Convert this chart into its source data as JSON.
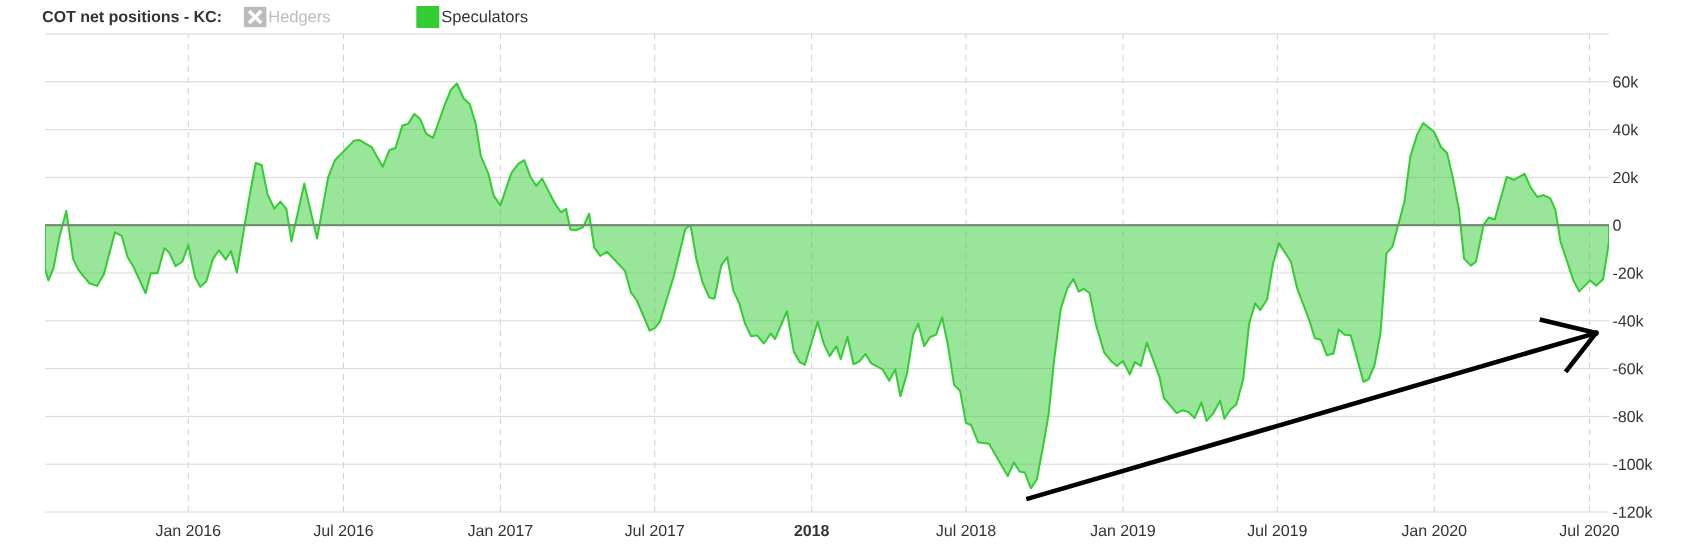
{
  "chart_data": {
    "type": "area",
    "legend_title": "COT net positions - KC:",
    "legend": "top left",
    "grid": true,
    "xlim": [
      "2015-07-17",
      "2020-07-24"
    ],
    "ylim": [
      -120000,
      80000
    ],
    "xticks": [
      {
        "value": "2016-01-01",
        "label": "Jan 2016"
      },
      {
        "value": "2016-07-01",
        "label": "Jul 2016"
      },
      {
        "value": "2017-01-01",
        "label": "Jan 2017"
      },
      {
        "value": "2017-07-01",
        "label": "Jul 2017"
      },
      {
        "value": "2018-01-01",
        "label": "**2018**"
      },
      {
        "value": "2018-07-01",
        "label": "Jul 2018"
      },
      {
        "value": "2019-01-01",
        "label": "Jan 2019"
      },
      {
        "value": "2019-07-01",
        "label": "Jul 2019"
      },
      {
        "value": "2020-01-01",
        "label": "Jan 2020"
      },
      {
        "value": "2020-07-01",
        "label": "Jul 2020"
      }
    ],
    "yticks": [
      {
        "value": -120000,
        "label": "-120k"
      },
      {
        "value": -100000,
        "label": "-100k"
      },
      {
        "value": -80000,
        "label": "-80k"
      },
      {
        "value": -60000,
        "label": "-60k"
      },
      {
        "value": -40000,
        "label": "-40k"
      },
      {
        "value": -20000,
        "label": "-20k"
      },
      0,
      {
        "value": 20000,
        "label": "20k"
      },
      {
        "value": 40000,
        "label": "40k"
      },
      {
        "value": 60000,
        "label": "60k"
      },
      {
        "value": 80000,
        "label": null
      }
    ],
    "ref_lines": [
      {
        "axis": "y",
        "value": 0,
        "color": "#808080"
      }
    ],
    "x": [
      "2015-07-17",
      "2015-07-21",
      "2015-07-27",
      "2015-08-03",
      "2015-08-11",
      "2015-08-19",
      "2015-08-25",
      "2015-09-07",
      "2015-09-16",
      "2015-09-24",
      "2015-10-07",
      "2015-10-15",
      "2015-10-22",
      "2015-10-29",
      "2015-11-12",
      "2015-11-18",
      "2015-11-26",
      "2015-12-04",
      "2015-12-10",
      "2015-12-17",
      "2015-12-25",
      "2016-01-01",
      "2016-01-09",
      "2016-01-15",
      "2016-01-22",
      "2016-01-30",
      "2016-02-06",
      "2016-02-14",
      "2016-02-20",
      "2016-02-27",
      "2016-03-05",
      "2016-03-13",
      "2016-03-20",
      "2016-03-27",
      "2016-04-03",
      "2016-04-11",
      "2016-04-18",
      "2016-04-25",
      "2016-05-01",
      "2016-05-16",
      "2016-05-31",
      "2016-06-13",
      "2016-06-21",
      "2016-07-13",
      "2016-07-20",
      "2016-08-03",
      "2016-08-16",
      "2016-08-24",
      "2016-08-31",
      "2016-09-08",
      "2016-09-15",
      "2016-09-22",
      "2016-09-29",
      "2016-10-06",
      "2016-10-14",
      "2016-10-28",
      "2016-11-04",
      "2016-11-11",
      "2016-11-19",
      "2016-11-26",
      "2016-12-03",
      "2016-12-09",
      "2016-12-18",
      "2016-12-24",
      "2017-01-01",
      "2017-01-14",
      "2017-01-22",
      "2017-01-29",
      "2017-02-05",
      "2017-02-12",
      "2017-02-19",
      "2017-03-06",
      "2017-03-13",
      "2017-03-19",
      "2017-03-24",
      "2017-03-31",
      "2017-04-08",
      "2017-04-15",
      "2017-04-21",
      "2017-04-28",
      "2017-05-06",
      "2017-05-27",
      "2017-06-03",
      "2017-06-10",
      "2017-06-25",
      "2017-07-01",
      "2017-07-07",
      "2017-07-23",
      "2017-08-06",
      "2017-08-12",
      "2017-08-19",
      "2017-08-26",
      "2017-09-03",
      "2017-09-09",
      "2017-09-17",
      "2017-09-24",
      "2017-10-01",
      "2017-10-08",
      "2017-10-15",
      "2017-10-22",
      "2017-10-29",
      "2017-11-06",
      "2017-11-14",
      "2017-11-19",
      "2017-12-03",
      "2017-12-11",
      "2017-12-18",
      "2017-12-24",
      "2018-01-08",
      "2018-01-15",
      "2018-01-22",
      "2018-01-30",
      "2018-02-04",
      "2018-02-12",
      "2018-02-19",
      "2018-02-26",
      "2018-03-05",
      "2018-03-12",
      "2018-03-25",
      "2018-04-02",
      "2018-04-09",
      "2018-04-15",
      "2018-04-23",
      "2018-04-30",
      "2018-05-06",
      "2018-05-13",
      "2018-05-20",
      "2018-05-27",
      "2018-06-03",
      "2018-06-10",
      "2018-06-17",
      "2018-06-24",
      "2018-07-01",
      "2018-07-07",
      "2018-07-15",
      "2018-07-28",
      "2018-08-19",
      "2018-08-26",
      "2018-09-02",
      "2018-09-08",
      "2018-09-15",
      "2018-09-22",
      "2018-09-29",
      "2018-10-06",
      "2018-10-12",
      "2018-10-20",
      "2018-10-28",
      "2018-11-04",
      "2018-11-10",
      "2018-11-16",
      "2018-11-23",
      "2018-11-30",
      "2018-12-10",
      "2018-12-18",
      "2018-12-25",
      "2019-01-01",
      "2019-01-09",
      "2019-01-15",
      "2019-01-22",
      "2019-01-29",
      "2019-02-13",
      "2019-02-18",
      "2019-03-05",
      "2019-03-12",
      "2019-03-19",
      "2019-03-26",
      "2019-04-03",
      "2019-04-09",
      "2019-04-17",
      "2019-04-25",
      "2019-04-30",
      "2019-05-07",
      "2019-05-14",
      "2019-05-22",
      "2019-05-29",
      "2019-06-05",
      "2019-06-11",
      "2019-06-19",
      "2019-06-26",
      "2019-07-03",
      "2019-07-17",
      "2019-07-24",
      "2019-08-08",
      "2019-08-14",
      "2019-08-21",
      "2019-08-28",
      "2019-09-05",
      "2019-09-11",
      "2019-09-18",
      "2019-09-25",
      "2019-10-10",
      "2019-10-16",
      "2019-10-23",
      "2019-10-30",
      "2019-11-06",
      "2019-11-13",
      "2019-11-27",
      "2019-12-04",
      "2019-12-12",
      "2019-12-19",
      "2019-12-26",
      "2020-01-01",
      "2020-01-09",
      "2020-01-16",
      "2020-01-23",
      "2020-01-30",
      "2020-02-05",
      "2020-02-13",
      "2020-02-19",
      "2020-02-28",
      "2020-03-05",
      "2020-03-12",
      "2020-03-26",
      "2020-04-03",
      "2020-04-16",
      "2020-04-23",
      "2020-05-01",
      "2020-05-08",
      "2020-05-16",
      "2020-05-22",
      "2020-05-28",
      "2020-06-12",
      "2020-06-19",
      "2020-07-02",
      "2020-07-09",
      "2020-07-17",
      "2020-07-24"
    ],
    "series": [
      {
        "name": "Hedgers",
        "color": "#bbbbbb",
        "values": [
          null,
          null,
          null,
          null,
          null,
          null,
          null,
          null,
          null,
          null,
          null,
          null,
          null,
          null,
          null,
          null,
          null,
          null,
          null,
          null,
          null,
          null,
          null,
          null,
          null,
          null,
          null,
          null,
          null,
          null,
          null,
          null,
          null,
          null,
          null,
          null,
          null,
          null,
          null,
          null,
          null,
          null,
          null,
          null,
          null,
          null,
          null,
          null,
          null,
          null,
          null,
          null,
          null,
          null,
          null,
          null,
          null,
          null,
          null,
          null,
          null,
          null,
          null,
          null,
          null,
          null,
          null,
          null,
          null,
          null,
          null,
          null,
          null,
          null,
          null,
          null,
          null,
          null,
          null,
          null,
          null,
          null,
          null,
          null,
          null,
          null,
          null,
          null,
          null,
          null,
          null,
          null,
          null,
          null,
          null,
          null,
          null,
          null,
          null,
          null,
          null,
          null,
          null,
          null,
          null,
          null,
          null,
          null,
          null,
          null,
          null,
          null,
          null,
          null,
          null,
          null,
          null,
          null,
          null,
          null,
          null,
          null,
          null,
          null,
          null,
          null,
          null,
          null,
          null,
          null,
          null,
          null,
          null,
          null,
          null,
          null,
          null,
          null,
          null,
          null,
          null,
          null,
          null,
          null,
          null,
          null,
          null,
          null,
          null,
          null,
          null,
          null,
          null,
          null,
          null,
          null,
          null,
          null,
          null,
          null,
          null,
          null,
          null,
          null,
          null,
          null,
          null,
          null,
          null,
          null,
          null,
          null,
          null,
          null,
          null,
          null,
          null,
          null,
          null,
          null,
          null,
          null,
          null,
          null,
          null,
          null,
          null,
          null,
          null,
          null,
          null,
          null,
          null,
          null,
          null,
          null,
          null,
          null,
          null,
          null,
          null,
          null,
          null,
          null,
          null,
          null,
          null,
          null,
          null,
          null,
          null,
          null,
          null,
          null,
          null,
          null,
          null,
          null,
          null,
          null,
          null,
          null,
          null,
          null,
          null,
          null,
          null
        ]
      },
      {
        "name": "Speculators",
        "color": "#33cc33",
        "values": [
          -18300,
          -23100,
          -18000,
          -4800,
          6000,
          -14100,
          -18600,
          -24300,
          -25400,
          -20600,
          -3000,
          -4500,
          -13500,
          -17600,
          -28500,
          -20100,
          -20100,
          -9600,
          -11700,
          -17100,
          -15300,
          -8300,
          -21800,
          -25800,
          -23700,
          -14100,
          -10500,
          -14400,
          -10800,
          -19800,
          -4500,
          12500,
          26000,
          25200,
          12800,
          6900,
          9900,
          6800,
          -6800,
          17400,
          -5600,
          20000,
          27200,
          35300,
          35600,
          32700,
          24500,
          31500,
          32300,
          41700,
          42500,
          46500,
          44400,
          38300,
          36500,
          50700,
          56700,
          59300,
          53000,
          50700,
          42500,
          29000,
          21500,
          12500,
          8300,
          21900,
          25700,
          27200,
          20400,
          16500,
          19500,
          9000,
          5400,
          6800,
          -1800,
          -2100,
          -800,
          4800,
          -9300,
          -12900,
          -11100,
          -19100,
          -28100,
          -31500,
          -44100,
          -43100,
          -40400,
          -21800,
          -1500,
          0,
          -14600,
          -23900,
          -30300,
          -30800,
          -16800,
          -13400,
          -27300,
          -32600,
          -41300,
          -46500,
          -46100,
          -49500,
          -45300,
          -47700,
          -36000,
          -52800,
          -57300,
          -58400,
          -40500,
          -49400,
          -54800,
          -50600,
          -56100,
          -46800,
          -58200,
          -57000,
          -53900,
          -57800,
          -60300,
          -65100,
          -60300,
          -71600,
          -61800,
          -45800,
          -41300,
          -50600,
          -46800,
          -45800,
          -38600,
          -50600,
          -66800,
          -69300,
          -82800,
          -83600,
          -90800,
          -91400,
          -105000,
          -99300,
          -103100,
          -103500,
          -110100,
          -106400,
          -93300,
          -78800,
          -57300,
          -35100,
          -26300,
          -22500,
          -27800,
          -26600,
          -28500,
          -41100,
          -53200,
          -56800,
          -58900,
          -56800,
          -62400,
          -57300,
          -58900,
          -49200,
          -63700,
          -72300,
          -78600,
          -77400,
          -78200,
          -80700,
          -74200,
          -81900,
          -78700,
          -73400,
          -81000,
          -77100,
          -75000,
          -64500,
          -41100,
          -32700,
          -35500,
          -31100,
          -16100,
          -7600,
          -15300,
          -26100,
          -40300,
          -47300,
          -47900,
          -54400,
          -53700,
          -43600,
          -45800,
          -46000,
          -65500,
          -64500,
          -58600,
          -45200,
          -11800,
          -9000,
          9700,
          28700,
          37900,
          42700,
          40800,
          39000,
          32600,
          30200,
          19700,
          6500,
          -14000,
          -16900,
          -15300,
          300,
          3200,
          2400,
          20200,
          19000,
          21500,
          15800,
          11800,
          12600,
          11300,
          6500,
          -6800,
          -22900,
          -27700,
          -23100,
          -25300,
          -22600,
          -6800
        ]
      }
    ]
  }
}
